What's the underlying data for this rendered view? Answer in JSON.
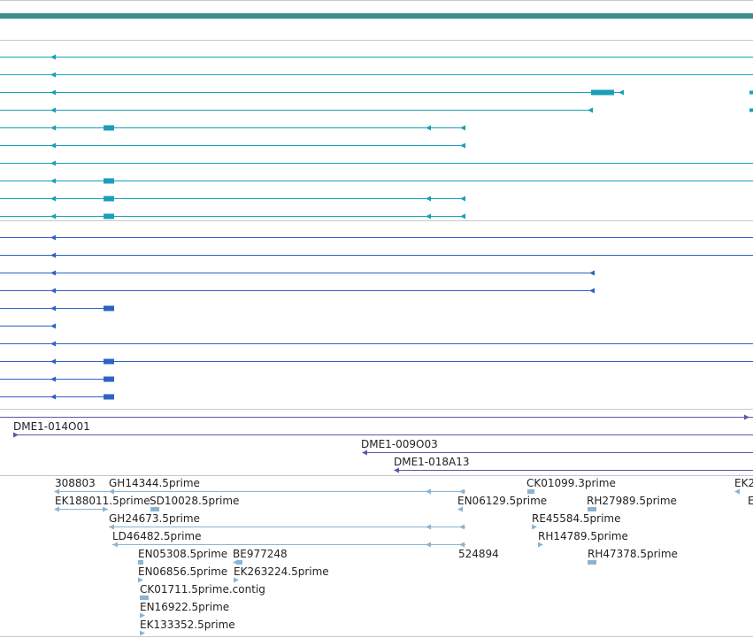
{
  "colors": {
    "top_track": "#3a8f8f",
    "transcript_teal": "#1a9fb8",
    "transcript_blue": "#2f62c4",
    "clone_purple": "#6a4fa8",
    "est_light": "#8ab4d2",
    "divider": "#c8c8c8"
  },
  "clones": [
    {
      "label": "DME1-014O01"
    },
    {
      "label": "DME1-009O03"
    },
    {
      "label": "DME1-018A13"
    }
  ],
  "est_labels": [
    "308803",
    "GH14344.5prime",
    "CK01099.3prime",
    "EK2",
    "EK188011.5prime",
    "SD10028.5prime",
    "EN06129.5prime",
    "RH27989.5prime",
    "E",
    "GH24673.5prime",
    "RE45584.5prime",
    "LD46482.5prime",
    "RH14789.5prime",
    "EN05308.5prime",
    "BE977248",
    "524894",
    "RH47378.5prime",
    "EN06856.5prime",
    "EK263224.5prime",
    "CK01711.5prime.contig",
    "EN16922.5prime",
    "EK133352.5prime"
  ]
}
